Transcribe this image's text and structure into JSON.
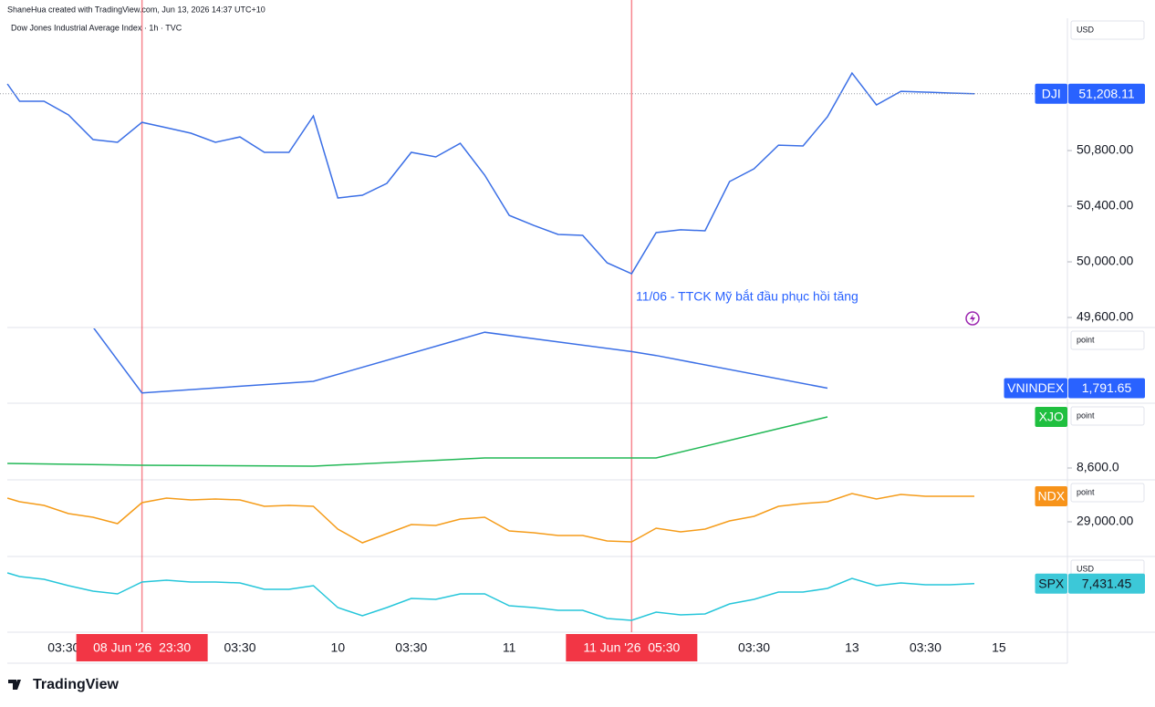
{
  "header": {
    "credit": "ShaneHua created with TradingView.com, Jun 13, 2026 14:37 UTC+10"
  },
  "footer": {
    "brand": "TradingView"
  },
  "x_axis": {
    "xlim": [
      -0.8,
      42.8
    ],
    "xticks": [
      {
        "value": 1.8,
        "label": "03:30"
      },
      {
        "value": 9,
        "label": "03:30"
      },
      {
        "value": 13,
        "label": "10"
      },
      {
        "value": 16,
        "label": "03:30"
      },
      {
        "value": 20,
        "label": "11"
      },
      {
        "value": 30,
        "label": "03:30"
      },
      {
        "value": 34,
        "label": "13"
      },
      {
        "value": 37,
        "label": "03:30"
      },
      {
        "value": 40,
        "label": "15"
      }
    ],
    "highlights": [
      {
        "value": 5,
        "label": "08 Jun '26  23:30"
      },
      {
        "value": 25,
        "label": "11 Jun '26  05:30"
      }
    ],
    "highlight_color": "#f23645"
  },
  "chart_data": [
    {
      "type": "line",
      "name": "DJI",
      "title": "Dow Jones Industrial Average Index · 1h · TVC",
      "unit": "USD",
      "color": "#3b6fe6",
      "label_color": "#2962ff",
      "label_text": "#ffffff",
      "annotation": "11/06 - TTCK Mỹ bắt đầu phục hồi tăng",
      "x": [
        -0.5,
        0,
        1,
        2,
        3,
        4,
        5,
        6,
        7,
        8,
        9,
        10,
        11,
        12,
        13,
        14,
        15,
        16,
        17,
        18,
        19,
        20,
        21,
        22,
        23,
        24,
        25,
        26,
        27,
        28,
        29,
        30,
        31,
        32,
        33,
        34,
        35,
        36,
        37,
        38,
        39
      ],
      "values": [
        51279,
        51154,
        51154,
        51056,
        50879,
        50859,
        51003,
        50964,
        50925,
        50859,
        50898,
        50787,
        50787,
        51049,
        50459,
        50479,
        50564,
        50787,
        50754,
        50852,
        50623,
        50334,
        50262,
        50197,
        50190,
        49993,
        49915,
        50210,
        50230,
        50223,
        50577,
        50669,
        50839,
        50833,
        51043,
        51357,
        51128,
        51226,
        51220,
        51213,
        51208.11
      ],
      "price_label": "51,208.11",
      "ylim": [
        49528,
        51751
      ],
      "yticks": [
        {
          "value": 50800,
          "label": "50,800.00"
        },
        {
          "value": 50400,
          "label": "50,400.00"
        },
        {
          "value": 50000,
          "label": "50,000.00"
        },
        {
          "value": 49600,
          "label": "49,600.00"
        }
      ]
    },
    {
      "type": "line",
      "name": "VNINDEX",
      "unit": "point",
      "color": "#3b6fe6",
      "label_color": "#2962ff",
      "label_text": "#ffffff",
      "x": [
        3,
        5,
        12,
        19,
        25,
        26,
        33
      ],
      "values": [
        1839,
        1788,
        1797,
        1835,
        1820,
        1817,
        1791.65
      ],
      "price_label": "1,791.65",
      "ylim": [
        1780,
        1838
      ],
      "yticks": []
    },
    {
      "type": "line",
      "name": "XJO",
      "unit": "point",
      "color": "#22b856",
      "label_color": "#1fbf3f",
      "label_text": "#ffffff",
      "x": [
        -0.5,
        5,
        12,
        19,
        26,
        33
      ],
      "values": [
        8610,
        8606,
        8604,
        8622,
        8622,
        8712
      ],
      "ylim": [
        8574,
        8740
      ],
      "yticks": [
        {
          "value": 8600,
          "label": "8,600.0"
        }
      ]
    },
    {
      "type": "line",
      "name": "NDX",
      "unit": "point",
      "color": "#f59c1a",
      "label_color": "#f7931a",
      "label_text": "#ffffff",
      "x": [
        -0.5,
        0,
        1,
        2,
        3,
        4,
        5,
        6,
        7,
        8,
        9,
        10,
        11,
        12,
        13,
        14,
        15,
        16,
        17,
        18,
        19,
        20,
        21,
        22,
        23,
        24,
        25,
        26,
        27,
        28,
        29,
        30,
        31,
        32,
        33,
        34,
        35,
        36,
        37,
        38,
        39
      ],
      "values": [
        29260,
        29220,
        29180,
        29090,
        29050,
        28980,
        29210,
        29260,
        29240,
        29250,
        29240,
        29170,
        29180,
        29170,
        28920,
        28770,
        28870,
        28970,
        28960,
        29030,
        29050,
        28900,
        28880,
        28850,
        28850,
        28790,
        28780,
        28930,
        28890,
        28920,
        29010,
        29060,
        29170,
        29200,
        29220,
        29310,
        29250,
        29300,
        29280,
        29280,
        29280
      ],
      "ylim": [
        28620,
        29450
      ],
      "yticks": [
        {
          "value": 29000,
          "label": "29,000.00"
        }
      ]
    },
    {
      "type": "line",
      "name": "SPX",
      "unit": "USD",
      "color": "#26c6da",
      "label_color": "#3cc8d8",
      "label_text": "#131722",
      "x": [
        -0.5,
        0,
        1,
        2,
        3,
        4,
        5,
        6,
        7,
        8,
        9,
        10,
        11,
        12,
        13,
        14,
        15,
        16,
        17,
        18,
        19,
        20,
        21,
        22,
        23,
        24,
        25,
        26,
        27,
        28,
        29,
        30,
        31,
        32,
        33,
        34,
        35,
        36,
        37,
        38,
        39
      ],
      "values": [
        7455,
        7447,
        7441,
        7427,
        7415,
        7409,
        7435,
        7439,
        7435,
        7435,
        7433,
        7419,
        7419,
        7427,
        7379,
        7361,
        7379,
        7399,
        7397,
        7409,
        7409,
        7383,
        7379,
        7373,
        7373,
        7355,
        7351,
        7369,
        7363,
        7365,
        7387,
        7397,
        7413,
        7413,
        7421,
        7443,
        7427,
        7433,
        7429,
        7429,
        7431.45
      ],
      "price_label": "7,431.45",
      "ylim": [
        7325,
        7489
      ],
      "yticks": []
    }
  ]
}
